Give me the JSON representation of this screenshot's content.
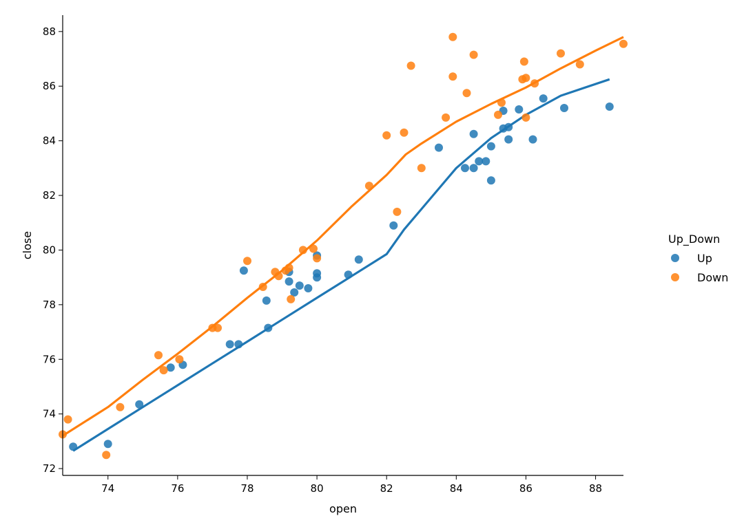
{
  "chart_data": {
    "type": "scatter",
    "xlabel": "open",
    "ylabel": "close",
    "xlim": [
      72.7,
      88.8
    ],
    "ylim": [
      71.75,
      88.6
    ],
    "x_ticks": [
      74,
      76,
      78,
      80,
      82,
      84,
      86,
      88
    ],
    "y_ticks": [
      72,
      74,
      76,
      78,
      80,
      82,
      84,
      86,
      88
    ],
    "grid": false,
    "legend": {
      "title": "Up_Down",
      "placement": "right"
    },
    "series": [
      {
        "name": "Up",
        "color": "#1f77b4",
        "points": [
          [
            73.0,
            72.8
          ],
          [
            74.0,
            72.9
          ],
          [
            74.9,
            74.35
          ],
          [
            75.8,
            75.7
          ],
          [
            76.15,
            75.8
          ],
          [
            77.5,
            76.55
          ],
          [
            77.75,
            76.55
          ],
          [
            77.9,
            79.25
          ],
          [
            78.55,
            78.15
          ],
          [
            78.6,
            77.15
          ],
          [
            79.2,
            78.85
          ],
          [
            79.2,
            79.2
          ],
          [
            79.35,
            78.45
          ],
          [
            79.5,
            78.7
          ],
          [
            79.75,
            78.6
          ],
          [
            80.0,
            79.0
          ],
          [
            80.0,
            79.15
          ],
          [
            80.0,
            79.8
          ],
          [
            80.9,
            79.1
          ],
          [
            81.2,
            79.65
          ],
          [
            82.2,
            80.9
          ],
          [
            83.5,
            83.75
          ],
          [
            84.25,
            83.0
          ],
          [
            84.5,
            83.0
          ],
          [
            84.5,
            84.25
          ],
          [
            84.65,
            83.25
          ],
          [
            84.85,
            83.25
          ],
          [
            85.0,
            82.55
          ],
          [
            85.0,
            83.8
          ],
          [
            85.35,
            85.1
          ],
          [
            85.35,
            84.45
          ],
          [
            85.5,
            84.05
          ],
          [
            85.5,
            84.5
          ],
          [
            85.8,
            85.15
          ],
          [
            86.2,
            84.05
          ],
          [
            86.5,
            85.55
          ],
          [
            87.1,
            85.2
          ],
          [
            88.4,
            85.25
          ]
        ],
        "fit": [
          [
            73.0,
            72.65
          ],
          [
            74.0,
            73.45
          ],
          [
            75.0,
            74.25
          ],
          [
            76.0,
            75.05
          ],
          [
            77.0,
            75.85
          ],
          [
            78.0,
            76.65
          ],
          [
            79.0,
            77.45
          ],
          [
            80.0,
            78.25
          ],
          [
            81.0,
            79.05
          ],
          [
            82.0,
            79.85
          ],
          [
            82.5,
            80.75
          ],
          [
            83.0,
            81.5
          ],
          [
            83.5,
            82.25
          ],
          [
            84.0,
            83.0
          ],
          [
            85.0,
            84.1
          ],
          [
            86.0,
            84.95
          ],
          [
            87.0,
            85.65
          ],
          [
            88.4,
            86.25
          ]
        ]
      },
      {
        "name": "Down",
        "color": "#ff7f0e",
        "points": [
          [
            72.7,
            73.25
          ],
          [
            72.85,
            73.8
          ],
          [
            73.95,
            72.5
          ],
          [
            74.35,
            74.25
          ],
          [
            75.45,
            76.15
          ],
          [
            75.6,
            75.6
          ],
          [
            76.05,
            76.0
          ],
          [
            77.0,
            77.15
          ],
          [
            77.15,
            77.15
          ],
          [
            78.0,
            79.6
          ],
          [
            78.45,
            78.65
          ],
          [
            78.8,
            79.2
          ],
          [
            78.9,
            79.05
          ],
          [
            79.1,
            79.25
          ],
          [
            79.2,
            79.35
          ],
          [
            79.25,
            78.2
          ],
          [
            79.6,
            80.0
          ],
          [
            79.9,
            80.05
          ],
          [
            80.0,
            79.7
          ],
          [
            81.5,
            82.35
          ],
          [
            82.0,
            84.2
          ],
          [
            82.3,
            81.4
          ],
          [
            82.5,
            84.3
          ],
          [
            82.7,
            86.75
          ],
          [
            83.0,
            83.0
          ],
          [
            83.7,
            84.85
          ],
          [
            83.9,
            86.35
          ],
          [
            83.9,
            87.8
          ],
          [
            84.3,
            85.75
          ],
          [
            84.5,
            87.15
          ],
          [
            85.2,
            84.95
          ],
          [
            85.3,
            85.4
          ],
          [
            85.9,
            86.25
          ],
          [
            85.95,
            86.9
          ],
          [
            86.0,
            86.3
          ],
          [
            86.0,
            84.85
          ],
          [
            86.25,
            86.1
          ],
          [
            87.0,
            87.2
          ],
          [
            87.55,
            86.8
          ],
          [
            88.8,
            87.55
          ]
        ],
        "fit": [
          [
            72.7,
            73.2
          ],
          [
            74.0,
            74.25
          ],
          [
            75.0,
            75.25
          ],
          [
            76.0,
            76.2
          ],
          [
            77.0,
            77.2
          ],
          [
            78.0,
            78.25
          ],
          [
            79.0,
            79.25
          ],
          [
            80.0,
            80.35
          ],
          [
            81.0,
            81.6
          ],
          [
            82.0,
            82.75
          ],
          [
            82.55,
            83.5
          ],
          [
            83.0,
            83.9
          ],
          [
            84.0,
            84.7
          ],
          [
            85.0,
            85.35
          ],
          [
            86.0,
            85.95
          ],
          [
            87.0,
            86.65
          ],
          [
            88.0,
            87.3
          ],
          [
            88.8,
            87.8
          ]
        ]
      }
    ]
  }
}
